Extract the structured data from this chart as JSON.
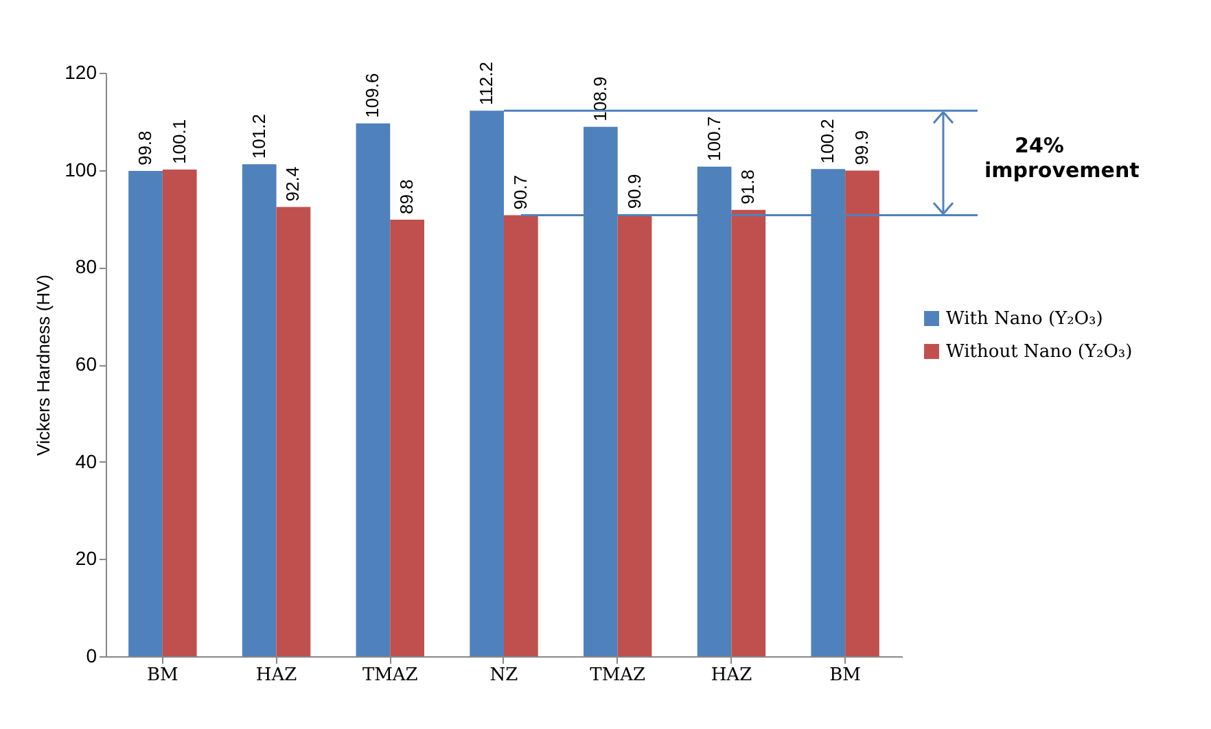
{
  "chart_data": {
    "type": "bar",
    "ylabel": "Vickers Hardness (HV)",
    "categories": [
      "BM",
      "HAZ",
      "TMAZ",
      "NZ",
      "TMAZ",
      "HAZ",
      "BM"
    ],
    "series": [
      {
        "name": "With Nano (Y₂O₃)",
        "color": "#4f81bd",
        "values": [
          99.8,
          101.2,
          109.6,
          112.2,
          108.9,
          100.7,
          100.2
        ]
      },
      {
        "name": "Without Nano (Y₂O₃)",
        "color": "#c0504d",
        "values": [
          100.1,
          92.4,
          89.8,
          90.7,
          90.9,
          91.8,
          99.9
        ]
      }
    ],
    "ylim": [
      0,
      120
    ],
    "yticks": [
      0,
      20,
      40,
      60,
      80,
      100,
      120
    ],
    "grid": false,
    "legend": "right",
    "data_labels": true,
    "ref_lines": [
      {
        "axis": "y",
        "value": 112.2,
        "color": "#4f81bd"
      },
      {
        "axis": "y",
        "value": 90.7,
        "color": "#4f81bd"
      }
    ],
    "annotations": [
      "24% improvement"
    ]
  }
}
